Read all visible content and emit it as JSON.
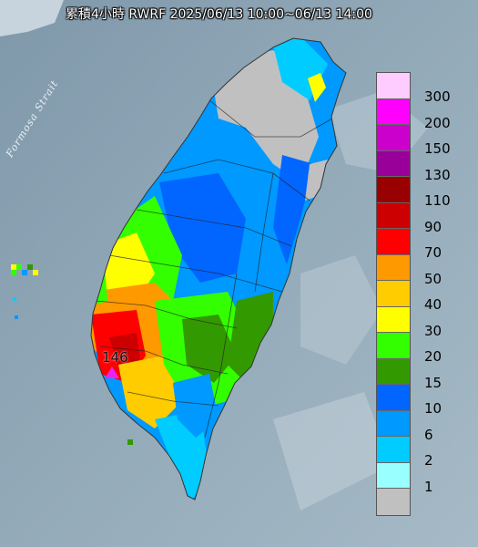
{
  "title": "累積4小時 RWRF 2025/06/13 10:00~06/13 14:00",
  "sea_label": "Formosa Strait",
  "max_rain_label": "146",
  "legend": {
    "unit_labels": [
      "300",
      "200",
      "150",
      "130",
      "110",
      "90",
      "70",
      "50",
      "40",
      "30",
      "20",
      "15",
      "10",
      "6",
      "2",
      "1"
    ],
    "colors": [
      "#ffccff",
      "#ff00ff",
      "#cc00cc",
      "#990099",
      "#990000",
      "#cc0000",
      "#ff0000",
      "#ff9900",
      "#ffcc00",
      "#ffff00",
      "#33ff00",
      "#339900",
      "#0066ff",
      "#0099ff",
      "#00ccff",
      "#99ffff",
      "#c0c0c0"
    ]
  }
}
